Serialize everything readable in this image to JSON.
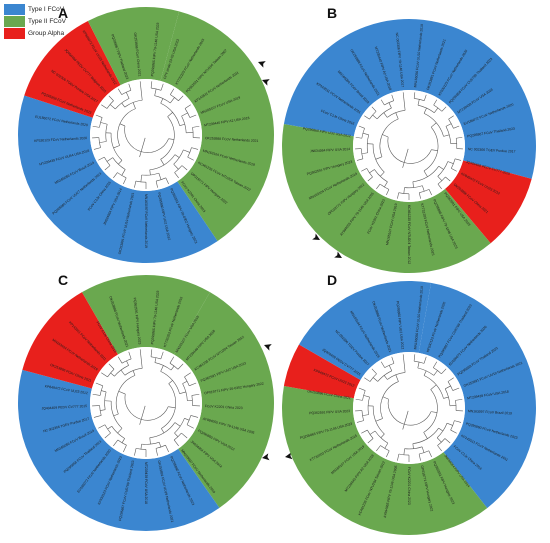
{
  "legend": [
    {
      "label": "Type I FCoV",
      "color": "#3b86d0"
    },
    {
      "label": "Type II FCoV",
      "color": "#6aa84f"
    },
    {
      "label": "Group Alpha",
      "color": "#e8201c"
    }
  ],
  "colors": {
    "type1": "#3b86d0",
    "type2": "#6aa84f",
    "alpha": "#e8201c",
    "tree": "#5a5a5a",
    "arrow": "#111111"
  },
  "panels": [
    {
      "letter": "A",
      "sectors": [
        {
          "group": "type2",
          "from_deg": 15,
          "to_deg": 146
        },
        {
          "group": "type1",
          "from_deg": 146,
          "to_deg": 288
        },
        {
          "group": "alpha",
          "from_deg": 288,
          "to_deg": 333
        },
        {
          "group": "type2",
          "from_deg": 333,
          "to_deg": 375
        }
      ],
      "labels": [
        "PQ295865 FIPV 79-1146 USA 2023",
        "CPV strain 23-03 USA 2023",
        "KT732203 FCoV Netherlands 2015",
        "PQ362591 FIPV NTU156 Taiwan 2007",
        "KP143511 FCoV Netherlands 2011",
        "MN165107 FCoV USA 2019",
        "MT239440 FIPV A2 USA 2018",
        "OK253888 FCoV Netherlands 2021",
        "MN163104 FCoV Netherlands 2019",
        "KC461235 FCoV NTU204 Taiwan 2012",
        "OP019771 FIPV Hungary 2022",
        "FCoV K2201 China 2023",
        "PQ362591 FIPV 26-0302 Hungary 2023",
        "PQ295860 FIPV UU2 USA 2012",
        "MN163097 FCoV Netherlands 2019",
        "OK253891 FCoV UU19 Netherlands 2021",
        "JN634064 FIPV USA 2014",
        "FCoV C1Je China 2016",
        "PQ295860 FCoV UU27 Netherlands 2023",
        "MN165056 FCoV Brazil 2019",
        "MT239439 FCoV UU54 USA 2018",
        "KF530123 FCoV Netherlands 2020",
        "EU186072 FCoV Netherlands 2020",
        "PQ295858 FCoV Netherlands 2023",
        "NC 002306 TGEV Purdue USA 2017",
        "JQ404409 PEDV CV777 Belgium 2015",
        "KP849472 FCoV UU23 Netherlands 2012",
        "PQ295867 FIPV Thailand 2023",
        "OK253896 FCoV China 2021"
      ],
      "arrows": 2
    },
    {
      "letter": "B",
      "sectors": [
        {
          "group": "type1",
          "from_deg": 0,
          "to_deg": 105
        },
        {
          "group": "alpha",
          "from_deg": 105,
          "to_deg": 140
        },
        {
          "group": "type2",
          "from_deg": 140,
          "to_deg": 280
        },
        {
          "group": "type1",
          "from_deg": 280,
          "to_deg": 360
        }
      ],
      "labels": [
        "MN165056 FCoV UU10 Netherlands 2019",
        "OK253891 FCoV Netherlands 2021",
        "KF530123 FCoV Netherlands 2020",
        "PQ295858 FCoV CU5799 Thailand 2023",
        "MT239439 FCoV USA 2018",
        "EU186072 FCoV Netherlands 2020",
        "PQ295867 FCoV Thailand 2023",
        "NC 002306 TGEV Purdue 2017",
        "JQ404409 PEDV CV777 2015",
        "KP849472 FCoV UU23 2012",
        "OK253896 FCoV China 2021",
        "PQ362591 FIPV USA 2023",
        "PQ295865 FIPV 79-1146 USA 2023",
        "KT732203 FCoV Netherlands 2015",
        "KC461235 FCoV NTU204 Taiwan 2012",
        "MN165107 FCoV USA 2019",
        "FCoV K2201 China 2023",
        "AY994055 FIPV 79-1146 USA 2005",
        "OP019771 FIPV Hungary 2022",
        "MN163104 FCoV Netherlands 2019",
        "PQ362591 FIPV Hungary 2023",
        "JN634064 FIPV USA 2014",
        "PQ295860 FIPV UU2 USA 2012",
        "FCoV C1Je China 2016",
        "KP143511 FCoV Netherlands 2011",
        "MN165056 FCoV Brazil 2019",
        "OK253888 FCoV Netherlands 2021",
        "MT239440 FIPV A2 USA 2018",
        "NC 002306 FIPV 79-1146 USA 2017"
      ],
      "arrows": 2
    },
    {
      "letter": "C",
      "sectors": [
        {
          "group": "type2",
          "from_deg": 30,
          "to_deg": 145
        },
        {
          "group": "type1",
          "from_deg": 145,
          "to_deg": 285
        },
        {
          "group": "alpha",
          "from_deg": 285,
          "to_deg": 330
        },
        {
          "group": "type2",
          "from_deg": 330,
          "to_deg": 390
        }
      ],
      "labels": [
        "PQ295865 FIPV 79-1146 USA 2023",
        "KT732203 FCoV Netherlands 2015",
        "MN165107 FCoV USA 2019",
        "MT239440 FIPV USA 2018",
        "KC461235 FCoV NTU204 Taiwan 2012",
        "PQ362591 FIPV UU2 USA 2023",
        "OP019771 FIPV 26-0302 Hungary 2022",
        "FCoV K2201 China 2023",
        "AY994055 FIPV 79-1146 USA 2005",
        "PQ295860 FIPV USA 2012",
        "JN634064 FIPV USA 2014",
        "MN163097 FCoV Netherlands 2019",
        "PQ295860 FCoV Netherlands 2023",
        "OK253891 FCoV UU19 Netherlands 2021",
        "MT239439 FCoV USA 2018",
        "PQ295867 FCoV CU5799 Thailand 2023",
        "KF530123 FCoV Netherlands 2020",
        "EU186072 FCoV Netherlands 2020",
        "PQ295858 FCoV Thailand 2023",
        "MN165056 FCoV Brazil 2019",
        "NC 002306 TGEV Purdue 2017",
        "JQ404409 PEDV CV777 2015",
        "KP849472 FCoV UU23 2012",
        "OK253896 FCoV China 2021",
        "MN163104 FCoV Netherlands 2019",
        "KP143511 FCoV Netherlands 2011",
        "FCoV C1Je China 2016",
        "OK253888 FCoV Netherlands 2021",
        "PQ362591 FIPV Hungary 2023"
      ],
      "arrows": 3
    },
    {
      "letter": "D",
      "sectors": [
        {
          "group": "type1",
          "from_deg": 10,
          "to_deg": 142
        },
        {
          "group": "type2",
          "from_deg": 142,
          "to_deg": 280
        },
        {
          "group": "alpha",
          "from_deg": 280,
          "to_deg": 300
        },
        {
          "group": "type1",
          "from_deg": 300,
          "to_deg": 370
        }
      ],
      "labels": [
        "MN165056 FCoV UU10 Netherlands 2019",
        "KF530123 FCoV Netherlands 2020",
        "PQ295867 FCoV CU5799 Thailand 2023",
        "EU186072 FCoV Netherlands 2020",
        "PQ295858 FCoV Thailand 2023",
        "OK253891 FCoV UU19 Netherlands 2021",
        "MT239439 FCoV USA 2018",
        "MN163097 FCoV Brazil 2019",
        "PQ295860 FCoV Netherlands 2023",
        "KP143511 FCoV Netherlands 2011",
        "FCoV C1Je China 2016",
        "JN634064 FIPV USA 2014",
        "PQ362591 FIPV Hungary 2023",
        "OP019771 FIPV Hungary 2022",
        "FCoV K2201 China 2023",
        "AY994055 FIPV 79-1146 USA 2005",
        "KC461235 FCoV NTU204 Taiwan 2012",
        "MT239440 FIPV A2 USA 2018",
        "MN165107 FCoV USA 2019",
        "KT732203 FCoV Netherlands 2015",
        "PQ295865 FIPV 79-1146 USA 2023",
        "PQ362591 FIPV USA 2023",
        "OK253896 FCoV China 2021",
        "KP849472 FCoV UU23 2012",
        "JQ404409 PEDV CV777 2015",
        "NC 002306 TGEV Purdue 2017",
        "MN163104 FCoV Netherlands 2019",
        "OK253888 FCoV Netherlands 2021",
        "PQ295860 FIPV UU2 USA 2012"
      ],
      "arrows": 0
    }
  ]
}
